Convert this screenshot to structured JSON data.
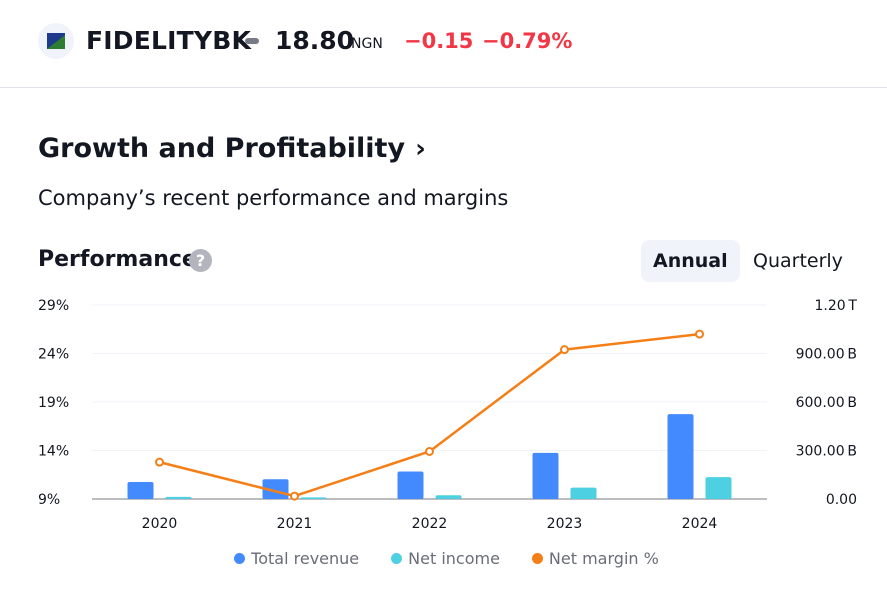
{
  "header": {
    "ticker": "FIDELITYBK",
    "price": "18.80",
    "currency": "NGN",
    "change": "−0.15",
    "change_pct": "−0.79%",
    "logo_icon": "bank-logo-icon"
  },
  "section": {
    "title": "Growth and Profitability",
    "chevron": "›",
    "subtitle": "Company’s recent performance and margins"
  },
  "performance": {
    "title": "Performance",
    "help": "?",
    "tabs": [
      {
        "label": "Annual",
        "active": true
      },
      {
        "label": "Quarterly",
        "active": false
      }
    ]
  },
  "colors": {
    "revenue": "#448aff",
    "income": "#4dd0e1",
    "margin": "#f57f17",
    "negative": "#f23645"
  },
  "chart_data": {
    "type": "bar",
    "categories": [
      "2020",
      "2021",
      "2022",
      "2023",
      "2024"
    ],
    "series": [
      {
        "name": "Total revenue",
        "axis": "right",
        "values": [
          105,
          122,
          170,
          285,
          525
        ]
      },
      {
        "name": "Net income",
        "axis": "right",
        "values": [
          13,
          10,
          23,
          70,
          135
        ]
      },
      {
        "name": "Net margin %",
        "axis": "left",
        "type": "line",
        "values": [
          12.8,
          9.3,
          13.9,
          24.4,
          26.0
        ]
      }
    ],
    "left_axis": {
      "ticks": [
        "29%",
        "24%",
        "19%",
        "14%",
        "9%"
      ],
      "values": [
        29,
        24,
        19,
        14,
        9
      ],
      "ylim": [
        9,
        29
      ]
    },
    "right_axis": {
      "ticks": [
        "1.20 T",
        "900.00 B",
        "600.00 B",
        "300.00 B",
        "0.00"
      ],
      "values": [
        1200,
        900,
        600,
        300,
        0
      ],
      "ylim": [
        0,
        1200
      ],
      "unit": "B"
    },
    "grid": true,
    "legend": "bottom-center"
  }
}
